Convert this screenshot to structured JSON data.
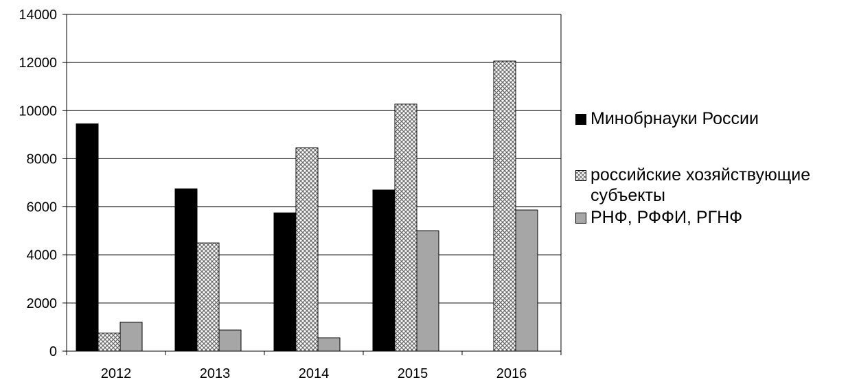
{
  "chart_data": {
    "type": "bar",
    "categories": [
      "2012",
      "2013",
      "2014",
      "2015",
      "2016"
    ],
    "series": [
      {
        "name": "Минобрнауки России",
        "values": [
          9450,
          6750,
          5750,
          6700,
          0
        ],
        "color": "#000000",
        "pattern": "solid"
      },
      {
        "name": "российские хозяйствующие субъекты",
        "values": [
          750,
          4500,
          8450,
          10270,
          12060
        ],
        "color": "#c8c8c8",
        "pattern": "crosshatch"
      },
      {
        "name": "РНФ, РФФИ, РГНФ",
        "values": [
          1200,
          880,
          550,
          5000,
          5870
        ],
        "color": "#a6a6a6",
        "pattern": "solid"
      }
    ],
    "yticks": [
      0,
      2000,
      4000,
      6000,
      8000,
      10000,
      12000,
      14000
    ],
    "ylim": [
      0,
      14000
    ],
    "grid": true,
    "legend": "right"
  }
}
